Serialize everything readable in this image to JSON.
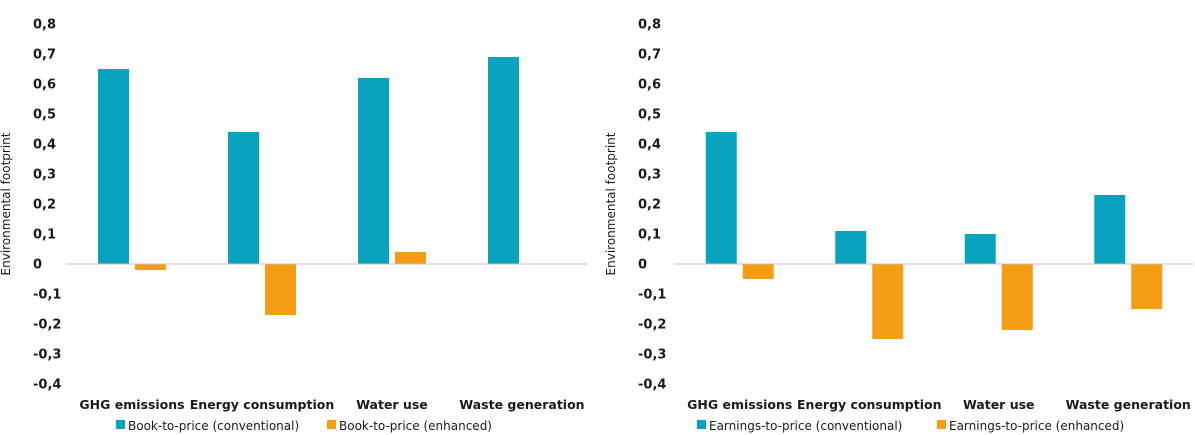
{
  "colors": {
    "conventional": "#0aa3bf",
    "enhanced": "#f59d14",
    "axis": "#bfbfbf",
    "text": "#1a1a1a"
  },
  "chart_data": [
    {
      "type": "bar",
      "ylabel": "Environmental footprint",
      "ylim": [
        -0.4,
        0.8
      ],
      "yticks": [
        "0,8",
        "0,7",
        "0,6",
        "0,5",
        "0,4",
        "0,3",
        "0,2",
        "0,1",
        "0",
        "-0,1",
        "-0,2",
        "-0,3",
        "-0,4"
      ],
      "categories": [
        "GHG emissions",
        "Energy consumption",
        "Water use",
        "Waste generation"
      ],
      "grid": false,
      "legend": "bottom",
      "series": [
        {
          "name": "Book-to-price (conventional)",
          "values": [
            0.65,
            0.44,
            0.62,
            0.69
          ]
        },
        {
          "name": "Book-to-price (enhanced)",
          "values": [
            -0.02,
            -0.17,
            0.04,
            0.0
          ]
        }
      ]
    },
    {
      "type": "bar",
      "ylabel": "Environmental footprint",
      "ylim": [
        -0.4,
        0.8
      ],
      "yticks": [
        "0,8",
        "0,7",
        "0,6",
        "0,5",
        "0,4",
        "0,3",
        "0,2",
        "0,1",
        "0",
        "-0,1",
        "-0,2",
        "-0,3",
        "-0,4"
      ],
      "categories": [
        "GHG emissions",
        "Energy consumption",
        "Water use",
        "Waste generation"
      ],
      "grid": false,
      "legend": "bottom",
      "series": [
        {
          "name": "Earnings-to-price (conventional)",
          "values": [
            0.44,
            0.11,
            0.1,
            0.23
          ]
        },
        {
          "name": "Earnings-to-price (enhanced)",
          "values": [
            -0.05,
            -0.25,
            -0.22,
            -0.15
          ]
        }
      ]
    }
  ]
}
